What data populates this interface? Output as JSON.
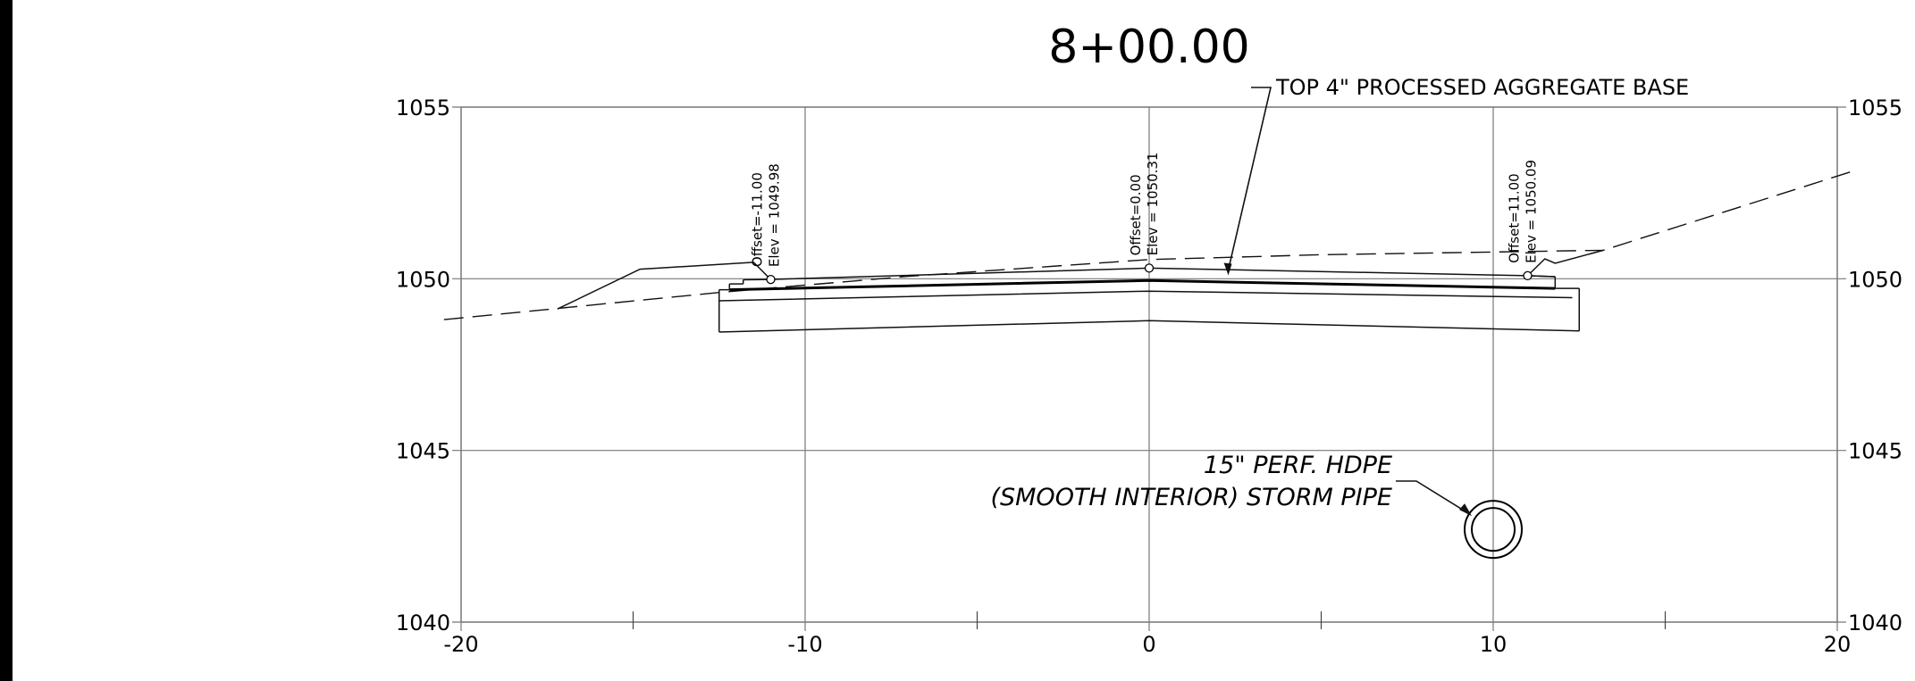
{
  "station_title": "8+00.00",
  "chart_data": {
    "type": "cross-section",
    "title": "8+00.00",
    "xlabel": "",
    "ylabel": "",
    "xlim": [
      -20,
      20
    ],
    "ylim": [
      1040,
      1055
    ],
    "x_ticks": [
      -20,
      -10,
      0,
      10,
      20
    ],
    "x_ticks_labels": [
      "-20",
      "-10",
      "0",
      "10",
      "20"
    ],
    "x_minor_ticks": [
      -15,
      -5,
      5,
      15
    ],
    "y_ticks": [
      1040,
      1045,
      1050,
      1055
    ],
    "y_ticks_labels": [
      "1040",
      "1045",
      "1050",
      "1055"
    ],
    "grid": true,
    "series": [
      {
        "id": "existing-ground",
        "style": "dashed",
        "points": [
          [
            -20.5,
            1048.81
          ],
          [
            -12.5,
            1049.6
          ],
          [
            -7.0,
            1050.07
          ],
          [
            0,
            1050.56
          ],
          [
            5,
            1050.7
          ],
          [
            13.2,
            1050.83
          ],
          [
            20.5,
            1053.15
          ]
        ]
      },
      {
        "id": "left-grading",
        "style": "solid",
        "points": [
          [
            -17.2,
            1049.12
          ],
          [
            -14.8,
            1050.28
          ],
          [
            -11.5,
            1050.48
          ],
          [
            -11.0,
            1049.98
          ]
        ]
      },
      {
        "id": "right-grading",
        "style": "solid",
        "points": [
          [
            11.0,
            1050.09
          ],
          [
            11.5,
            1050.58
          ],
          [
            11.8,
            1050.45
          ],
          [
            13.2,
            1050.83
          ]
        ]
      },
      {
        "id": "finished-surface",
        "style": "thin",
        "points": [
          [
            -11.8,
            1049.97
          ],
          [
            -11.0,
            1049.98
          ],
          [
            0,
            1050.31
          ],
          [
            11.0,
            1050.09
          ],
          [
            11.8,
            1050.06
          ]
        ]
      },
      {
        "id": "base-top",
        "style": "thick",
        "points": [
          [
            -12.2,
            1049.68
          ],
          [
            0,
            1049.95
          ],
          [
            11.8,
            1049.72
          ]
        ]
      },
      {
        "id": "subbase-top",
        "style": "thin",
        "points": [
          [
            -12.5,
            1049.36
          ],
          [
            0,
            1049.64
          ],
          [
            12.3,
            1049.45
          ]
        ]
      },
      {
        "id": "subbase-bottom",
        "style": "thin",
        "points": [
          [
            -12.5,
            1048.45
          ],
          [
            0,
            1048.78
          ],
          [
            12.5,
            1048.48
          ]
        ]
      }
    ],
    "points": [
      {
        "id": "left",
        "x": -11.0,
        "y": 1049.98,
        "offset_label": "Offset=-11.00",
        "elev_label": "Elev = 1049.98"
      },
      {
        "id": "center",
        "x": 0.0,
        "y": 1050.31,
        "offset_label": "Offset=0.00",
        "elev_label": "Elev = 1050.31"
      },
      {
        "id": "right",
        "x": 11.0,
        "y": 1050.09,
        "offset_label": "Offset=11.00",
        "elev_label": "Elev = 1050.09"
      }
    ],
    "pipe": {
      "x": 10.0,
      "y": 1042.7,
      "diameter_ft": 1.25
    },
    "annotations": [
      {
        "id": "aggregate-base",
        "text": "TOP 4\" PROCESSED AGGREGATE BASE",
        "target": [
          2.3,
          1050.1
        ]
      },
      {
        "id": "pipe-line1",
        "text": "15\" PERF. HDPE"
      },
      {
        "id": "pipe-line2",
        "text": "(SMOOTH INTERIOR) STORM PIPE"
      }
    ]
  }
}
